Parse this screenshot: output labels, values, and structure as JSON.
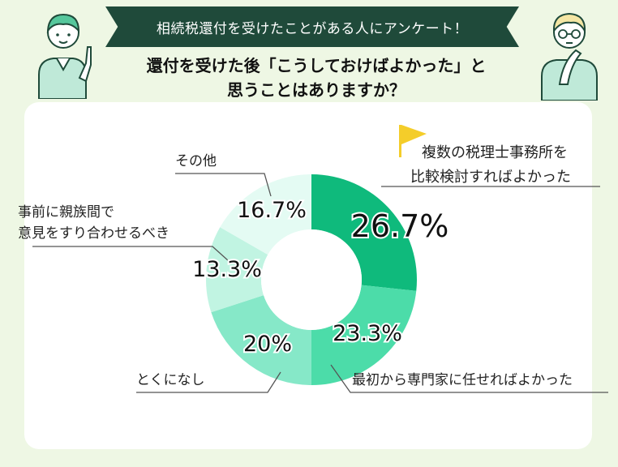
{
  "header": {
    "banner": "相続税還付を受けたことがある人にアンケート！",
    "question_line1": "還付を受けた後「こうしておけばよかった」と",
    "question_line2": "思うことはありますか？"
  },
  "chart_data": {
    "type": "pie",
    "donut": true,
    "legend": "none",
    "slices": [
      {
        "label_lines": [
          "複数の税理士事務所を",
          "比較検討すればよかった"
        ],
        "value": 26.7,
        "value_label": "26.7%",
        "color": "#0fba7c"
      },
      {
        "label_lines": [
          "最初から専門家に任せればよかった"
        ],
        "value": 23.3,
        "value_label": "23.3%",
        "color": "#4cdca9"
      },
      {
        "label_lines": [
          "とくになし"
        ],
        "value": 20,
        "value_label": "20%",
        "color": "#86e8c8"
      },
      {
        "label_lines": [
          "事前に親族間で",
          "意見をすり合わせるべき"
        ],
        "value": 13.3,
        "value_label": "13.3%",
        "color": "#c1f4e2"
      },
      {
        "label_lines": [
          "その他"
        ],
        "value": 16.7,
        "value_label": "16.7%",
        "color": "#e4fbf3"
      }
    ],
    "flag_color": "#f4cd2a",
    "leader_color": "#555555"
  }
}
